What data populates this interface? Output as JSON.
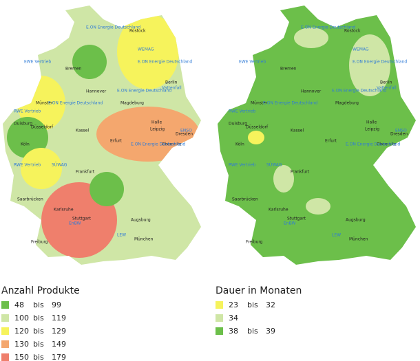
{
  "maps": [
    {
      "legend": {
        "title": "Anzahl Produkte",
        "items": [
          {
            "from": 48,
            "sep": "bis",
            "to": 99,
            "color": "#6cbf4a"
          },
          {
            "from": 100,
            "sep": "bis",
            "to": 119,
            "color": "#cfe6a6"
          },
          {
            "from": 120,
            "sep": "bis",
            "to": 129,
            "color": "#f6f35c"
          },
          {
            "from": 130,
            "sep": "bis",
            "to": 149,
            "color": "#f4a76e"
          },
          {
            "from": 150,
            "sep": "bis",
            "to": 179,
            "color": "#ef7f6c"
          }
        ]
      }
    },
    {
      "legend": {
        "title": "Dauer in Monaten",
        "items": [
          {
            "from": 23,
            "sep": "bis",
            "to": 32,
            "color": "#f6f35c"
          },
          {
            "from": 34,
            "color": "#cfe6a6"
          },
          {
            "from": 38,
            "sep": "bis",
            "to": 39,
            "color": "#6cbf4a"
          }
        ]
      }
    }
  ],
  "cities": [
    "Rostock",
    "Bremen",
    "Hannover",
    "Berlin",
    "Magdeburg",
    "Münster",
    "Duisburg",
    "Düsseldorf",
    "Köln",
    "Kassel",
    "Halle",
    "Leipzig",
    "Erfurt",
    "Dresden",
    "Chemnitz",
    "Frankfurt",
    "Saarbrücken",
    "Karlsruhe",
    "Stuttgart",
    "Augsburg",
    "München",
    "Freiburg"
  ],
  "providers": [
    "E.ON Energie Deutschland",
    "WEMAG",
    "EWE Vertrieb",
    "E.ON Energie Deutschland",
    "Vattenfall",
    "E.ON Energie Deutschland",
    "RWE Vertrieb",
    "E.ON Energie Deutschland",
    "ENSO",
    "RWE Vertrieb",
    "SÜWAG",
    "E.ON Energie Deutschland",
    "EnBW",
    "LEW"
  ]
}
